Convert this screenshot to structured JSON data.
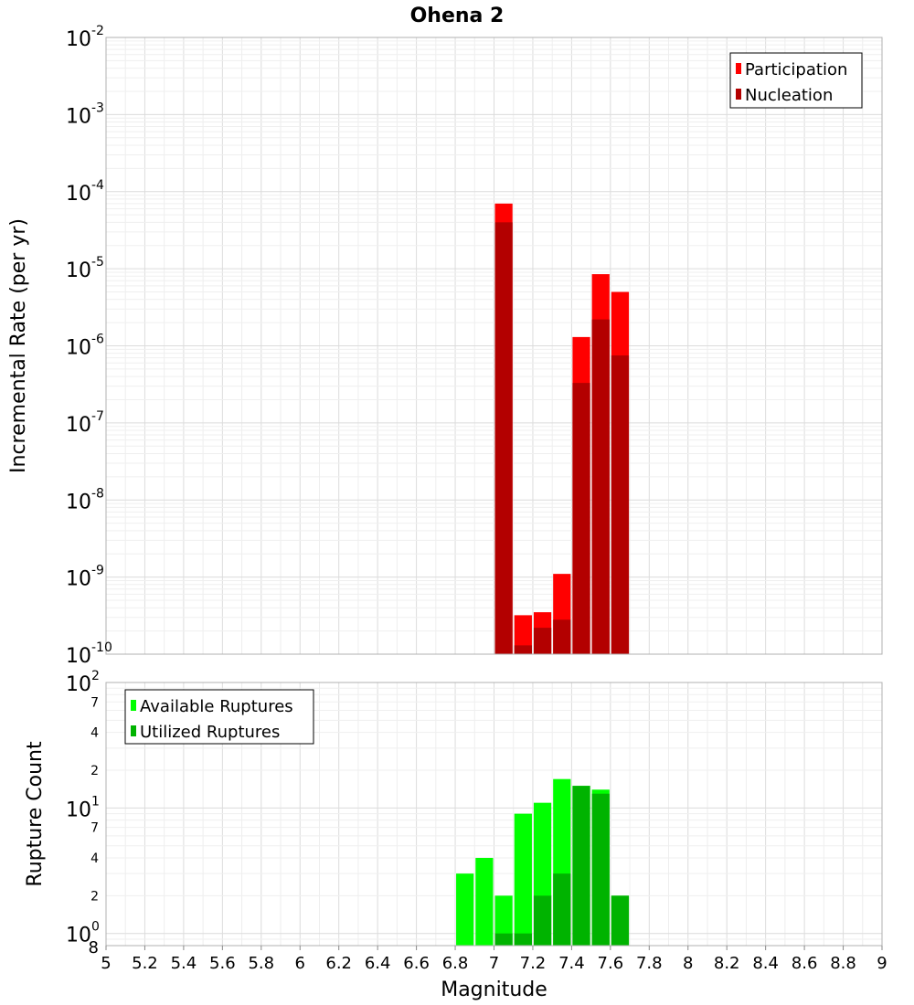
{
  "chart_data": {
    "title": "Ohena 2",
    "xlabel": "Magnitude",
    "xlim": [
      5,
      9
    ],
    "x_ticks": [
      "5",
      "5.2",
      "5.4",
      "5.6",
      "5.8",
      "6",
      "6.2",
      "6.4",
      "6.6",
      "6.8",
      "7",
      "7.2",
      "7.4",
      "7.6",
      "7.8",
      "8",
      "8.2",
      "8.4",
      "8.6",
      "8.8",
      "9"
    ],
    "bin_width": 0.1,
    "panels": [
      {
        "type": "bar",
        "ylabel": "Incremental Rate (per yr)",
        "y_scale": "log",
        "ylim": [
          1e-10,
          0.01
        ],
        "y_ticks": [
          {
            "base": "10",
            "exp": "-10",
            "value": 1e-10
          },
          {
            "base": "10",
            "exp": "-9",
            "value": 1e-09
          },
          {
            "base": "10",
            "exp": "-8",
            "value": 1e-08
          },
          {
            "base": "10",
            "exp": "-7",
            "value": 1e-07
          },
          {
            "base": "10",
            "exp": "-6",
            "value": 1e-06
          },
          {
            "base": "10",
            "exp": "-5",
            "value": 1e-05
          },
          {
            "base": "10",
            "exp": "-4",
            "value": 0.0001
          },
          {
            "base": "10",
            "exp": "-3",
            "value": 0.001
          },
          {
            "base": "10",
            "exp": "-2",
            "value": 0.01
          }
        ],
        "legend_position": "top-right",
        "series": [
          {
            "name": "Participation",
            "color": "#ff0000",
            "x": [
              7.05,
              7.15,
              7.25,
              7.35,
              7.45,
              7.55,
              7.65
            ],
            "values": [
              7e-05,
              3.2e-10,
              3.5e-10,
              1.1e-09,
              1.3e-06,
              8.5e-06,
              5e-06
            ]
          },
          {
            "name": "Nucleation",
            "color": "#b30000",
            "x": [
              7.05,
              7.15,
              7.25,
              7.35,
              7.45,
              7.55,
              7.65
            ],
            "values": [
              4e-05,
              1.3e-10,
              2.2e-10,
              2.8e-10,
              3.3e-07,
              2.2e-06,
              7.5e-07
            ]
          }
        ]
      },
      {
        "type": "bar",
        "ylabel": "Rupture Count",
        "y_scale": "log",
        "ylim": [
          0.8,
          100
        ],
        "y_ticks": [
          {
            "base": "10",
            "exp": "0",
            "value": 1
          },
          {
            "base": "10",
            "exp": "1",
            "value": 10
          },
          {
            "base": "10",
            "exp": "2",
            "value": 100
          }
        ],
        "y_minor_labels": [
          {
            "label": "8",
            "value": 0.8
          },
          {
            "label": "2",
            "value": 2
          },
          {
            "label": "4",
            "value": 4
          },
          {
            "label": "7",
            "value": 7
          },
          {
            "label": "2",
            "value": 20
          },
          {
            "label": "4",
            "value": 40
          },
          {
            "label": "7",
            "value": 70
          }
        ],
        "legend_position": "top-left",
        "series": [
          {
            "name": "Available Ruptures",
            "color": "#00ff00",
            "x": [
              6.85,
              6.95,
              7.05,
              7.15,
              7.25,
              7.35,
              7.45,
              7.55,
              7.65
            ],
            "values": [
              3,
              4,
              2,
              9,
              11,
              17,
              15,
              14,
              2
            ]
          },
          {
            "name": "Utilized Ruptures",
            "color": "#00b300",
            "x": [
              7.05,
              7.15,
              7.25,
              7.35,
              7.45,
              7.55,
              7.65
            ],
            "values": [
              1,
              1,
              2,
              3,
              15,
              13,
              2
            ]
          }
        ]
      }
    ]
  }
}
